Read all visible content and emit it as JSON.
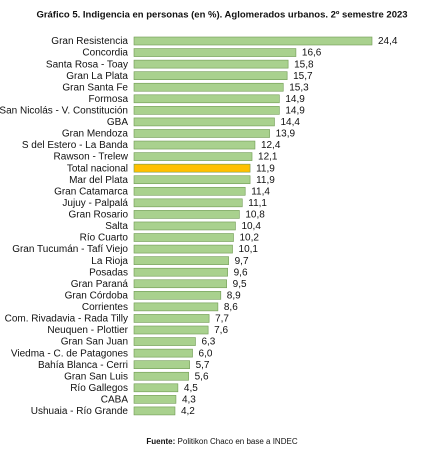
{
  "chart_data": {
    "type": "bar",
    "orientation": "horizontal",
    "title": "Gráfico 5. Indigencia en personas (en %). Aglomerados urbanos. 2º semestre 2023",
    "categories": [
      "Gran Resistencia",
      "Concordia",
      "Santa Rosa - Toay",
      "Gran La Plata",
      "Gran Santa Fe",
      "Formosa",
      "San Nicolás - V. Constitución",
      "GBA",
      "Gran Mendoza",
      "S del Estero - La Banda",
      "Rawson - Trelew",
      "Total nacional",
      "Mar del Plata",
      "Gran Catamarca",
      "Jujuy - Palpalá",
      "Gran Rosario",
      "Salta",
      "Río Cuarto",
      "Gran Tucumán - Tafí Viejo",
      "La Rioja",
      "Posadas",
      "Gran Paraná",
      "Gran Córdoba",
      "Corrientes",
      "Com. Rivadavia - Rada Tilly",
      "Neuquen - Plottier",
      "Gran San Juan",
      "Viedma - C. de Patagones",
      "Bahía Blanca - Cerri",
      "Gran San Luis",
      "Río Gallegos",
      "CABA",
      "Ushuaia - Río Grande"
    ],
    "values": [
      24.4,
      16.6,
      15.8,
      15.7,
      15.3,
      14.9,
      14.9,
      14.4,
      13.9,
      12.4,
      12.1,
      11.9,
      11.9,
      11.4,
      11.1,
      10.8,
      10.4,
      10.2,
      10.1,
      9.7,
      9.6,
      9.5,
      8.9,
      8.6,
      7.7,
      7.6,
      6.3,
      6.0,
      5.7,
      5.6,
      4.5,
      4.3,
      4.2
    ],
    "value_labels": [
      "24,4",
      "16,6",
      "15,8",
      "15,7",
      "15,3",
      "14,9",
      "14,9",
      "14,4",
      "13,9",
      "12,4",
      "12,1",
      "11,9",
      "11,9",
      "11,4",
      "11,1",
      "10,8",
      "10,4",
      "10,2",
      "10,1",
      "9,7",
      "9,6",
      "9,5",
      "8,9",
      "8,6",
      "7,7",
      "7,6",
      "6,3",
      "6,0",
      "5,7",
      "5,6",
      "4,5",
      "4,3",
      "4,2"
    ],
    "colors": [
      "#a9d18e",
      "#a9d18e",
      "#a9d18e",
      "#a9d18e",
      "#a9d18e",
      "#a9d18e",
      "#a9d18e",
      "#a9d18e",
      "#a9d18e",
      "#a9d18e",
      "#a9d18e",
      "#ffc000",
      "#a9d18e",
      "#a9d18e",
      "#a9d18e",
      "#a9d18e",
      "#a9d18e",
      "#a9d18e",
      "#a9d18e",
      "#a9d18e",
      "#a9d18e",
      "#a9d18e",
      "#a9d18e",
      "#a9d18e",
      "#a9d18e",
      "#a9d18e",
      "#a9d18e",
      "#a9d18e",
      "#a9d18e",
      "#a9d18e",
      "#a9d18e",
      "#a9d18e",
      "#a9d18e"
    ],
    "source_label": "Fuente:",
    "source": "Politikon Chaco en base a INDEC"
  }
}
